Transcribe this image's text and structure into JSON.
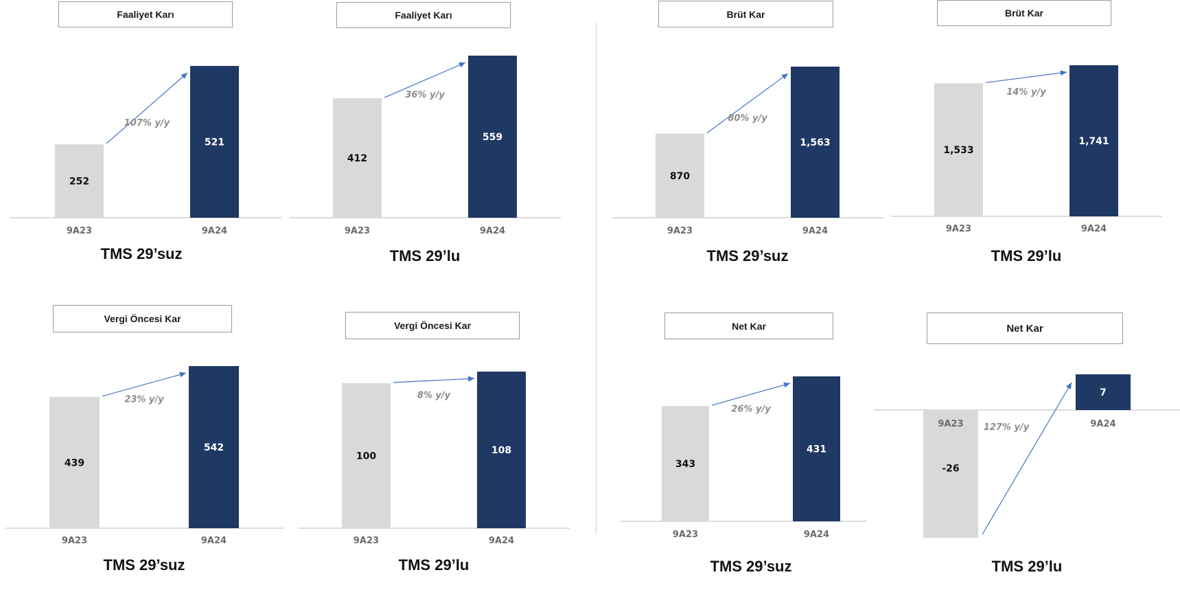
{
  "colors": {
    "prior_bar": "#d9d9d9",
    "current_bar": "#1f3864",
    "arrow": "#4472c4",
    "axis": "#d0d0d0",
    "prior_label": "#111111",
    "current_label": "#ffffff",
    "growth_label": "#8c8c8c"
  },
  "chart_data": [
    {
      "type": "bar",
      "title": "Faaliyet Karı",
      "caption": "TMS 29’suz",
      "categories": [
        "9A23",
        "9A24"
      ],
      "values": [
        252,
        521
      ],
      "value_labels": [
        "252",
        "521"
      ],
      "growth_label": "107% y/y"
    },
    {
      "type": "bar",
      "title": "Faaliyet Karı",
      "caption": "TMS 29’lu",
      "categories": [
        "9A23",
        "9A24"
      ],
      "values": [
        412,
        559
      ],
      "value_labels": [
        "412",
        "559"
      ],
      "growth_label": "36% y/y"
    },
    {
      "type": "bar",
      "title": "Brüt Kar",
      "caption": "TMS 29’suz",
      "categories": [
        "9A23",
        "9A24"
      ],
      "values": [
        870,
        1563
      ],
      "value_labels": [
        "870",
        "1,563"
      ],
      "growth_label": "80% y/y"
    },
    {
      "type": "bar",
      "title": "Brüt Kar",
      "caption": "TMS 29’lu",
      "categories": [
        "9A23",
        "9A24"
      ],
      "values": [
        1533,
        1741
      ],
      "value_labels": [
        "1,533",
        "1,741"
      ],
      "growth_label": "14% y/y"
    },
    {
      "type": "bar",
      "title": "Vergi Öncesi Kar",
      "caption": "TMS 29’suz",
      "categories": [
        "9A23",
        "9A24"
      ],
      "values": [
        439,
        542
      ],
      "value_labels": [
        "439",
        "542"
      ],
      "growth_label": "23% y/y"
    },
    {
      "type": "bar",
      "title": "Vergi Öncesi Kar",
      "caption": "TMS 29’lu",
      "categories": [
        "9A23",
        "9A24"
      ],
      "values": [
        100,
        108
      ],
      "value_labels": [
        "100",
        "108"
      ],
      "growth_label": "8% y/y"
    },
    {
      "type": "bar",
      "title": "Net Kar",
      "caption": "TMS 29’suz",
      "categories": [
        "9A23",
        "9A24"
      ],
      "values": [
        343,
        431
      ],
      "value_labels": [
        "343",
        "431"
      ],
      "growth_label": "26% y/y"
    },
    {
      "type": "bar",
      "title": "Net Kar",
      "caption": "TMS 29’lu",
      "categories": [
        "9A23",
        "9A24"
      ],
      "values": [
        -26,
        7
      ],
      "value_labels": [
        "-26",
        "7"
      ],
      "growth_label": "127% y/y"
    }
  ]
}
